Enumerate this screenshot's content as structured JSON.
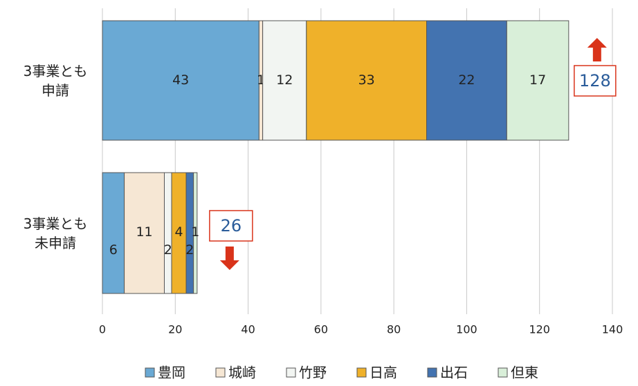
{
  "chart_data": {
    "type": "stacked_barh",
    "categories": [
      "3事業とも\n申請",
      "3事業とも\n未申請"
    ],
    "series": [
      {
        "name": "豊岡",
        "color": "#6aa9d4",
        "values": [
          43,
          6
        ]
      },
      {
        "name": "城崎",
        "color": "#f6e7d4",
        "values": [
          1,
          11
        ]
      },
      {
        "name": "竹野",
        "color": "#f2f5f2",
        "values": [
          12,
          2
        ]
      },
      {
        "name": "日高",
        "color": "#efb12a",
        "values": [
          33,
          4
        ]
      },
      {
        "name": "出石",
        "color": "#4373b0",
        "values": [
          22,
          2
        ]
      },
      {
        "name": "但東",
        "color": "#d9efd9",
        "values": [
          17,
          1
        ]
      }
    ],
    "totals": [
      128,
      26
    ],
    "xlim": [
      0,
      140
    ],
    "xticks": [
      0,
      20,
      40,
      60,
      80,
      100,
      120,
      140
    ],
    "grid": true
  }
}
